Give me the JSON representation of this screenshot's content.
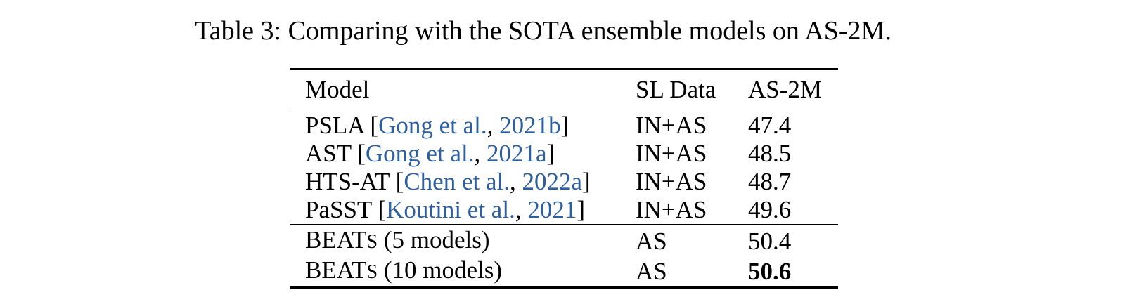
{
  "caption": "Table 3: Comparing with the SOTA ensemble models on AS-2M.",
  "table": {
    "headers": [
      "Model",
      "SL Data",
      "AS-2M"
    ],
    "rows": [
      {
        "model": "PSLA",
        "cite_open": "[",
        "cite_author": "Gong et al.",
        "cite_sep": ", ",
        "cite_year": "2021b",
        "cite_close": "]",
        "sl_data": "IN+AS",
        "as2m": "47.4"
      },
      {
        "model": "AST",
        "cite_open": "[",
        "cite_author": "Gong et al.",
        "cite_sep": ", ",
        "cite_year": "2021a",
        "cite_close": "]",
        "sl_data": "IN+AS",
        "as2m": "48.5"
      },
      {
        "model": "HTS-AT",
        "cite_open": "[",
        "cite_author": "Chen et al.",
        "cite_sep": ", ",
        "cite_year": "2022a",
        "cite_close": "]",
        "sl_data": "IN+AS",
        "as2m": "48.7"
      },
      {
        "model": "PaSST",
        "cite_open": "[",
        "cite_author": "Koutini et al.",
        "cite_sep": ", ",
        "cite_year": "2021",
        "cite_close": "]",
        "sl_data": "IN+AS",
        "as2m": "49.6"
      }
    ],
    "beats_rows": [
      {
        "name_main": "BEAT",
        "name_small": "S",
        "suffix": " (5 models)",
        "sl_data": "AS",
        "as2m": "50.4"
      },
      {
        "name_main": "BEAT",
        "name_small": "S",
        "suffix": " (10 models)",
        "sl_data": "AS",
        "as2m": "50.6"
      }
    ]
  }
}
